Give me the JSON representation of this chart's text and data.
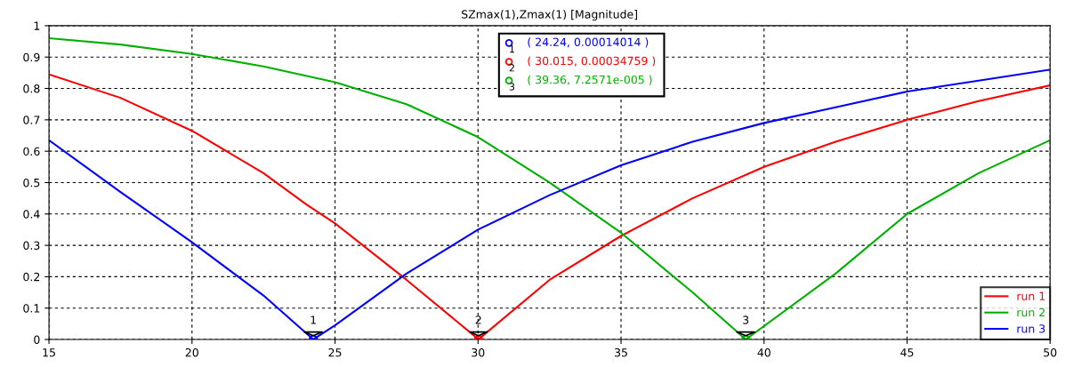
{
  "chart_data": {
    "type": "line",
    "title": "SZmax(1),Zmax(1) [Magnitude]",
    "xlim": [
      15,
      50
    ],
    "xticks": [
      15,
      20,
      25,
      30,
      35,
      40,
      45,
      50
    ],
    "ylim": [
      0,
      1
    ],
    "yticks": [
      0,
      0.1,
      0.2,
      0.3,
      0.4,
      0.5,
      0.6,
      0.7,
      0.8,
      0.9,
      1
    ],
    "grid": true,
    "legend": "bottom right",
    "series": [
      {
        "name": "run 1",
        "color": "#ff0000",
        "x": [
          15,
          17.5,
          20,
          22.5,
          24,
          25,
          27.5,
          30.015,
          32.5,
          35,
          37.5,
          40,
          42.5,
          45,
          47.5,
          50
        ],
        "values": [
          0.845,
          0.77,
          0.665,
          0.53,
          0.43,
          0.37,
          0.19,
          0.00034759,
          0.19,
          0.33,
          0.45,
          0.55,
          0.63,
          0.7,
          0.76,
          0.81
        ]
      },
      {
        "name": "run 2",
        "color": "#00b000",
        "x": [
          15,
          17.5,
          20,
          22.5,
          25,
          27.5,
          30,
          32.5,
          35,
          37.5,
          39.36,
          42.5,
          45,
          47.5,
          50
        ],
        "values": [
          0.96,
          0.94,
          0.91,
          0.87,
          0.82,
          0.75,
          0.645,
          0.5,
          0.34,
          0.15,
          7.2571e-05,
          0.21,
          0.4,
          0.53,
          0.635
        ]
      },
      {
        "name": "run 3",
        "color": "#0000ff",
        "x": [
          15,
          17.5,
          20,
          22.5,
          24.24,
          25,
          27.5,
          30,
          32.5,
          35,
          37.5,
          40,
          42.5,
          45,
          47.5,
          50
        ],
        "values": [
          0.635,
          0.47,
          0.31,
          0.14,
          0.00014014,
          0.045,
          0.21,
          0.35,
          0.46,
          0.555,
          0.63,
          0.69,
          0.74,
          0.79,
          0.825,
          0.86
        ]
      }
    ],
    "annotations": [
      {
        "text": "1",
        "x": 24.24,
        "y": 0.00014014
      },
      {
        "text": "2",
        "x": 30.015,
        "y": 0.00034759
      },
      {
        "text": "3",
        "x": 39.36,
        "y": 7.2571e-05
      },
      "( 24.24, 0.00014014 )",
      "( 30.015, 0.00034759 )",
      "( 39.36, 7.2571e-005 )"
    ]
  }
}
